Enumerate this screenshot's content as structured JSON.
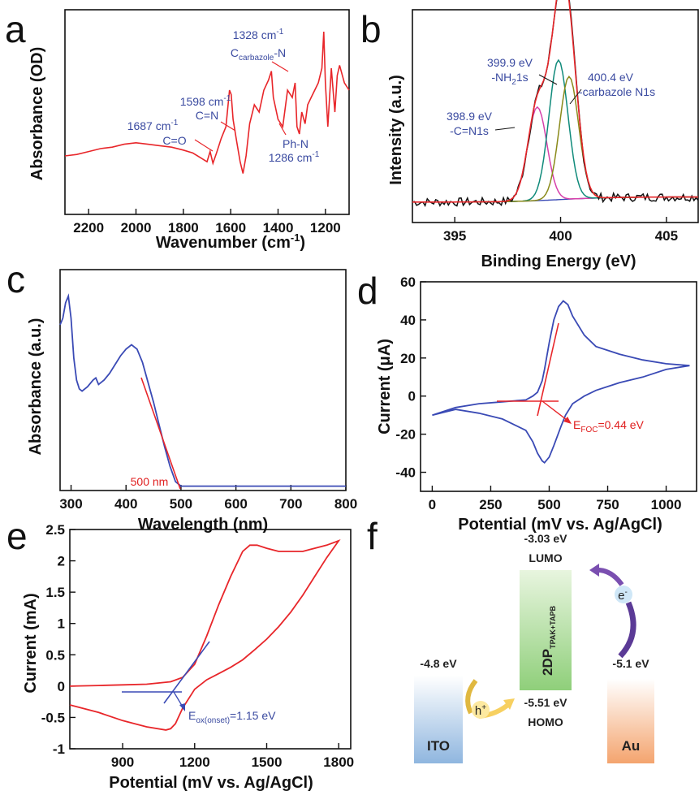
{
  "chart_data": [
    {
      "panel": "a",
      "type": "line",
      "xlabel": "Wavenumber (cm-1)",
      "ylabel": "Absorbance (OD)",
      "xlim": [
        2300,
        1100
      ],
      "x_reversed": true,
      "x_ticks": [
        2200,
        2000,
        1800,
        1600,
        1400,
        1200
      ],
      "series_color": "#e8262a",
      "x": [
        2300,
        2250,
        2200,
        2150,
        2100,
        2050,
        2000,
        1950,
        1900,
        1850,
        1800,
        1760,
        1720,
        1700,
        1687,
        1675,
        1660,
        1640,
        1620,
        1605,
        1598,
        1590,
        1575,
        1560,
        1548,
        1535,
        1520,
        1500,
        1480,
        1460,
        1440,
        1428,
        1420,
        1400,
        1380,
        1360,
        1340,
        1328,
        1320,
        1310,
        1300,
        1286,
        1275,
        1260,
        1245,
        1230,
        1215,
        1207,
        1200,
        1190,
        1175,
        1160,
        1150,
        1140,
        1120,
        1100
      ],
      "y": [
        0.1,
        0.11,
        0.13,
        0.15,
        0.16,
        0.18,
        0.19,
        0.18,
        0.17,
        0.16,
        0.14,
        0.12,
        0.08,
        0.06,
        0.13,
        0.05,
        0.12,
        0.22,
        0.3,
        0.55,
        0.52,
        0.35,
        0.2,
        0.06,
        -0.02,
        0.1,
        0.32,
        0.45,
        0.4,
        0.55,
        0.62,
        0.68,
        0.5,
        0.35,
        0.3,
        0.55,
        0.5,
        0.6,
        0.3,
        0.25,
        0.4,
        0.32,
        0.45,
        0.5,
        0.55,
        0.6,
        0.7,
        0.95,
        0.6,
        0.3,
        0.7,
        0.4,
        0.65,
        0.72,
        0.6,
        0.55
      ],
      "ylim": [
        -0.3,
        1.1
      ],
      "annotations": [
        {
          "id": "co",
          "lines": [
            "1687 cm-1",
            "C=O"
          ]
        },
        {
          "id": "cn",
          "lines": [
            "1598 cm-1",
            "C=N"
          ]
        },
        {
          "id": "carb",
          "lines": [
            "1328 cm-1",
            "Ccarbazole-N"
          ]
        },
        {
          "id": "phn",
          "lines": [
            "Ph-N",
            "1286 cm-1"
          ]
        }
      ]
    },
    {
      "panel": "b",
      "type": "line",
      "xlabel": "Binding Energy (eV)",
      "ylabel": "Intensity (a.u.)",
      "xlim": [
        393,
        406.5
      ],
      "x_ticks": [
        395,
        400,
        405
      ],
      "peaks": [
        {
          "center": 398.9,
          "amp": 0.55,
          "width": 0.45,
          "color": "#d63faa"
        },
        {
          "center": 399.9,
          "amp": 0.82,
          "width": 0.45,
          "color": "#0f8a7a"
        },
        {
          "center": 400.4,
          "amp": 0.72,
          "width": 0.45,
          "color": "#8a8a1a"
        }
      ],
      "envelope_color": "#e8262a",
      "raw_color": "#111111",
      "baseline_color": "#3a4ab5",
      "annotations": [
        {
          "id": "p1",
          "lines": [
            "398.9 eV",
            "-C=N1s"
          ]
        },
        {
          "id": "p2",
          "lines": [
            "399.9 eV",
            "-NH21s"
          ]
        },
        {
          "id": "p3",
          "lines": [
            "400.4 eV",
            "-carbazole N1s"
          ]
        }
      ]
    },
    {
      "panel": "c",
      "type": "line",
      "xlabel": "Wavelength (nm)",
      "ylabel": "Absorbance (a.u.)",
      "xlim": [
        280,
        800
      ],
      "x_ticks": [
        300,
        400,
        500,
        600,
        700,
        800
      ],
      "series_color": "#3a4ab5",
      "x": [
        280,
        285,
        290,
        295,
        300,
        305,
        310,
        315,
        320,
        330,
        340,
        345,
        350,
        360,
        370,
        380,
        390,
        400,
        410,
        420,
        430,
        440,
        450,
        460,
        470,
        480,
        490,
        500,
        510,
        550,
        600,
        700,
        800
      ],
      "y": [
        0.75,
        0.78,
        0.85,
        0.88,
        0.78,
        0.6,
        0.5,
        0.46,
        0.45,
        0.47,
        0.5,
        0.51,
        0.48,
        0.5,
        0.53,
        0.57,
        0.61,
        0.64,
        0.66,
        0.64,
        0.58,
        0.49,
        0.4,
        0.3,
        0.2,
        0.11,
        0.04,
        0.02,
        0.02,
        0.02,
        0.02,
        0.02,
        0.02
      ],
      "ylim": [
        0,
        1
      ],
      "onset_label": "500 nm"
    },
    {
      "panel": "d",
      "type": "line",
      "xlabel": "Potential (mV vs. Ag/AgCl)",
      "ylabel": "Current (μA)",
      "xlim": [
        -50,
        1130
      ],
      "ylim": [
        -50,
        60
      ],
      "x_ticks": [
        0,
        250,
        500,
        750,
        1000
      ],
      "y_ticks": [
        -40,
        -20,
        0,
        20,
        40,
        60
      ],
      "series_color": "#3a4ab5",
      "x": [
        0,
        100,
        200,
        300,
        400,
        430,
        450,
        470,
        480,
        500,
        520,
        540,
        560,
        580,
        600,
        650,
        700,
        800,
        900,
        1000,
        1100,
        1000,
        900,
        800,
        700,
        650,
        600,
        570,
        550,
        520,
        500,
        480,
        470,
        450,
        430,
        400,
        300,
        200,
        100,
        0
      ],
      "y": [
        -10,
        -6,
        -4,
        -3,
        -2,
        0,
        2,
        8,
        14,
        28,
        40,
        47,
        50,
        48,
        42,
        32,
        26,
        22,
        19,
        17,
        16,
        14,
        10,
        7,
        3,
        0,
        -4,
        -10,
        -16,
        -26,
        -32,
        -35,
        -34,
        -30,
        -24,
        -18,
        -12,
        -9,
        -7,
        -10
      ],
      "onset_label": "EFOC=0.44 eV"
    },
    {
      "panel": "e",
      "type": "line",
      "xlabel": "Potential (mV vs. Ag/AgCl)",
      "ylabel": "Current (mA)",
      "xlim": [
        680,
        1850
      ],
      "ylim": [
        -1.0,
        2.5
      ],
      "x_ticks": [
        900,
        1200,
        1500,
        1800
      ],
      "y_ticks": [
        -1.0,
        -0.5,
        0.0,
        0.5,
        1.0,
        1.5,
        2.0,
        2.5
      ],
      "series_color": "#e8262a",
      "x": [
        680,
        800,
        900,
        1000,
        1100,
        1150,
        1200,
        1250,
        1300,
        1350,
        1400,
        1430,
        1460,
        1500,
        1550,
        1600,
        1650,
        1700,
        1750,
        1800,
        1750,
        1700,
        1650,
        1600,
        1550,
        1500,
        1450,
        1400,
        1350,
        1300,
        1250,
        1200,
        1150,
        1120,
        1100,
        1080,
        1000,
        900,
        800,
        680
      ],
      "y": [
        0.0,
        0.01,
        0.02,
        0.03,
        0.07,
        0.14,
        0.35,
        0.8,
        1.3,
        1.75,
        2.15,
        2.25,
        2.25,
        2.2,
        2.15,
        2.15,
        2.15,
        2.2,
        2.25,
        2.32,
        2.05,
        1.75,
        1.45,
        1.18,
        0.95,
        0.75,
        0.58,
        0.42,
        0.3,
        0.2,
        0.1,
        -0.05,
        -0.35,
        -0.6,
        -0.68,
        -0.7,
        -0.65,
        -0.55,
        -0.42,
        -0.3
      ],
      "onset_label": "Eox(onset)=1.15 eV"
    }
  ],
  "panel_f": {
    "ito_energy": "-4.8 eV",
    "ito_label": "ITO",
    "lumo_energy": "-3.03 eV",
    "lumo_label": "LUMO",
    "cof_label": "2DP",
    "cof_sub": "TPAK+TAPB",
    "homo_energy": "-5.51 eV",
    "homo_label": "HOMO",
    "au_energy": "-5.1 eV",
    "au_label": "Au",
    "hole_label": "h",
    "electron_label": "e"
  },
  "letters": {
    "a": "a",
    "b": "b",
    "c": "c",
    "d": "d",
    "e": "e",
    "f": "f"
  }
}
